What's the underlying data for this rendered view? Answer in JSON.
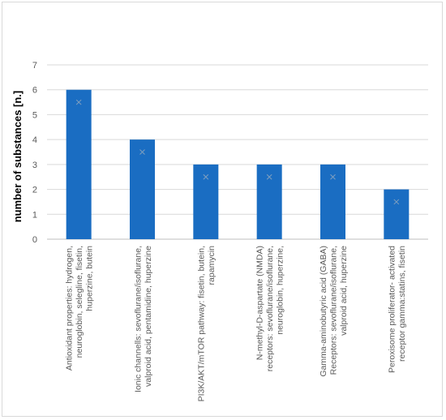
{
  "chart_data": {
    "type": "bar",
    "title": "",
    "xlabel": "",
    "ylabel": "number of substances [n.]",
    "ylim": [
      0,
      7
    ],
    "yticks": [
      "0",
      "1",
      "2",
      "3",
      "4",
      "5",
      "6",
      "7"
    ],
    "grid": true,
    "legend": "none",
    "bar_color": "#1a6dc2",
    "error_marker_color": "#7f9fbf",
    "categories": [
      [
        "Antioxidant properties: hydrogen,",
        "neuroglobin, selegline, fisetin,",
        "huperzine, butein"
      ],
      [
        "Ionic channells: sevoflurane/isoflurane,",
        "valproid acid, pentamidine, huperzine"
      ],
      [
        "PI3K/AKT/mTOR pathway: fisetin, butein,",
        "rapamycin"
      ],
      [
        "N-methyl-D-aspartate (NMDA)",
        "receptors: sevoflurane/isoflurane,",
        "neuroglobin, huperzine,"
      ],
      [
        "Gamma-aminobutyric acid (GABA)",
        "Receptors: sevoflurane/isoflurane,",
        "valproid acid, huperzine"
      ],
      [
        "Peroxisome proliferator- activated",
        "receptor gamma:statins, fisetin"
      ]
    ],
    "values": [
      6,
      4,
      3,
      3,
      3,
      2
    ],
    "markers": [
      5.5,
      3.5,
      2.5,
      2.5,
      2.5,
      1.5
    ]
  }
}
